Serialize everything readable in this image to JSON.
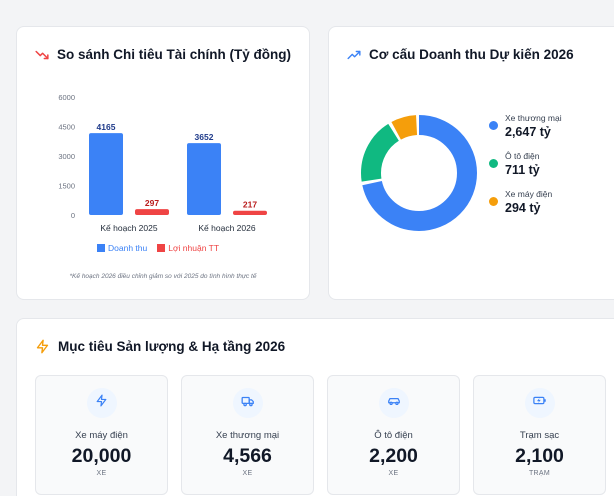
{
  "finance": {
    "title": "So sánh Chi tiêu Tài chính (Tỷ đồng)",
    "note": "*Kế hoạch 2026 điều chỉnh giảm so với 2025 do tình hình thực tế",
    "icon": "trending-down-icon",
    "chart_data": {
      "type": "bar",
      "categories": [
        "Kế hoạch 2025",
        "Kế hoạch 2026"
      ],
      "series": [
        {
          "name": "Doanh thu",
          "values": [
            4165,
            3652
          ],
          "color": "#3b82f6",
          "label_color": "#1e3a8a"
        },
        {
          "name": "Lợi nhuận TT",
          "values": [
            297,
            217
          ],
          "color": "#ef4444",
          "label_color": "#b91c1c"
        }
      ],
      "yticks": [
        "0",
        "1500",
        "3000",
        "4500",
        "6000"
      ],
      "ylim": [
        0,
        6000
      ],
      "grid": false,
      "legend": "bottom"
    }
  },
  "revenue": {
    "title": "Cơ cấu Doanh thu Dự kiến 2026",
    "icon": "trending-up-icon",
    "chart_data": {
      "type": "pie",
      "donut": true,
      "slices": [
        {
          "name": "Xe thương mại",
          "value": 2647,
          "display": "2,647 tỷ",
          "color": "#3b82f6"
        },
        {
          "name": "Ô tô điện",
          "value": 711,
          "display": "711 tỷ",
          "color": "#10b981"
        },
        {
          "name": "Xe máy điện",
          "value": 294,
          "display": "294 tỷ",
          "color": "#f59e0b"
        }
      ]
    }
  },
  "targets": {
    "title": "Mục tiêu Sản lượng & Hạ tầng 2026",
    "icon": "lightning-icon",
    "items": [
      {
        "label": "Xe máy điện",
        "value": "20,000",
        "unit": "XE",
        "icon": "lightning-icon",
        "accent": "#3b82f6"
      },
      {
        "label": "Xe thương mại",
        "value": "4,566",
        "unit": "XE",
        "icon": "truck-icon",
        "accent": "#3b82f6"
      },
      {
        "label": "Ô tô điện",
        "value": "2,200",
        "unit": "XE",
        "icon": "car-icon",
        "accent": "#3b82f6"
      },
      {
        "label": "Trạm sạc",
        "value": "2,100",
        "unit": "TRẠM",
        "icon": "charging-station-icon",
        "accent": "#3b82f6"
      }
    ]
  }
}
